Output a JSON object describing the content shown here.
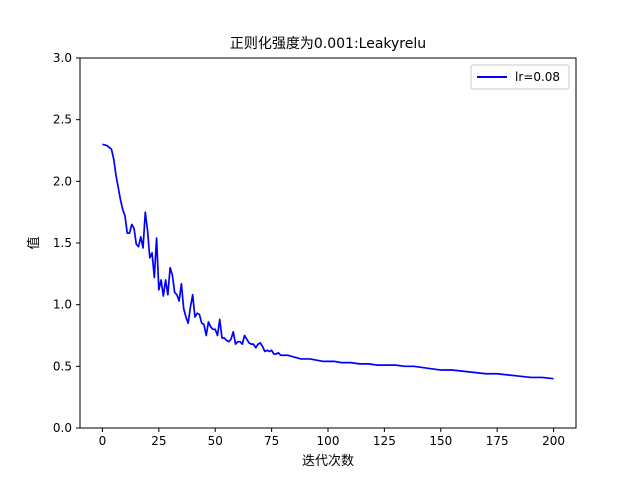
{
  "chart_data": {
    "type": "line",
    "title": "正则化强度为0.001:Leakyrelu",
    "xlabel": "迭代次数",
    "ylabel": "值",
    "xlim": [
      -9.95,
      209.95
    ],
    "ylim": [
      0,
      3.0
    ],
    "xticks": [
      0,
      25,
      50,
      75,
      100,
      125,
      150,
      175,
      200
    ],
    "yticks": [
      0.0,
      0.5,
      1.0,
      1.5,
      2.0,
      2.5,
      3.0
    ],
    "xtick_labels": [
      "0",
      "25",
      "50",
      "75",
      "100",
      "125",
      "150",
      "175",
      "200"
    ],
    "ytick_labels": [
      "0.0",
      "0.5",
      "1.0",
      "1.5",
      "2.0",
      "2.5",
      "3.0"
    ],
    "grid": false,
    "legend_position": "top-right",
    "series": [
      {
        "name": "lr=0.08",
        "color": "#0000ff",
        "x": [
          0,
          2,
          4,
          5,
          6,
          7,
          8,
          9,
          10,
          11,
          12,
          13,
          14,
          15,
          16,
          17,
          18,
          19,
          20,
          21,
          22,
          23,
          24,
          25,
          26,
          27,
          28,
          29,
          30,
          31,
          32,
          33,
          34,
          35,
          36,
          37,
          38,
          39,
          40,
          41,
          42,
          43,
          44,
          45,
          46,
          47,
          48,
          49,
          50,
          51,
          52,
          53,
          54,
          55,
          56,
          57,
          58,
          59,
          60,
          61,
          62,
          63,
          64,
          65,
          66,
          67,
          68,
          69,
          70,
          71,
          72,
          73,
          74,
          75,
          76,
          77,
          78,
          79,
          80,
          82,
          84,
          86,
          88,
          90,
          92,
          95,
          98,
          100,
          103,
          106,
          110,
          114,
          118,
          122,
          126,
          130,
          134,
          138,
          142,
          146,
          150,
          155,
          160,
          165,
          170,
          175,
          180,
          185,
          190,
          195,
          200
        ],
        "values": [
          2.3,
          2.29,
          2.26,
          2.18,
          2.05,
          1.95,
          1.85,
          1.77,
          1.72,
          1.58,
          1.58,
          1.65,
          1.62,
          1.49,
          1.47,
          1.55,
          1.46,
          1.75,
          1.6,
          1.38,
          1.42,
          1.22,
          1.54,
          1.12,
          1.2,
          1.07,
          1.2,
          1.08,
          1.3,
          1.24,
          1.1,
          1.08,
          1.03,
          1.17,
          0.97,
          0.9,
          0.85,
          0.98,
          1.08,
          0.9,
          0.93,
          0.92,
          0.85,
          0.84,
          0.75,
          0.86,
          0.82,
          0.8,
          0.8,
          0.75,
          0.88,
          0.73,
          0.73,
          0.71,
          0.7,
          0.72,
          0.78,
          0.68,
          0.7,
          0.7,
          0.68,
          0.75,
          0.72,
          0.69,
          0.68,
          0.68,
          0.65,
          0.68,
          0.69,
          0.66,
          0.62,
          0.63,
          0.62,
          0.63,
          0.6,
          0.6,
          0.61,
          0.59,
          0.59,
          0.59,
          0.58,
          0.57,
          0.56,
          0.56,
          0.56,
          0.55,
          0.54,
          0.54,
          0.54,
          0.53,
          0.53,
          0.52,
          0.52,
          0.51,
          0.51,
          0.51,
          0.5,
          0.5,
          0.49,
          0.48,
          0.47,
          0.47,
          0.46,
          0.45,
          0.44,
          0.44,
          0.43,
          0.42,
          0.41,
          0.41,
          0.4
        ]
      }
    ]
  }
}
